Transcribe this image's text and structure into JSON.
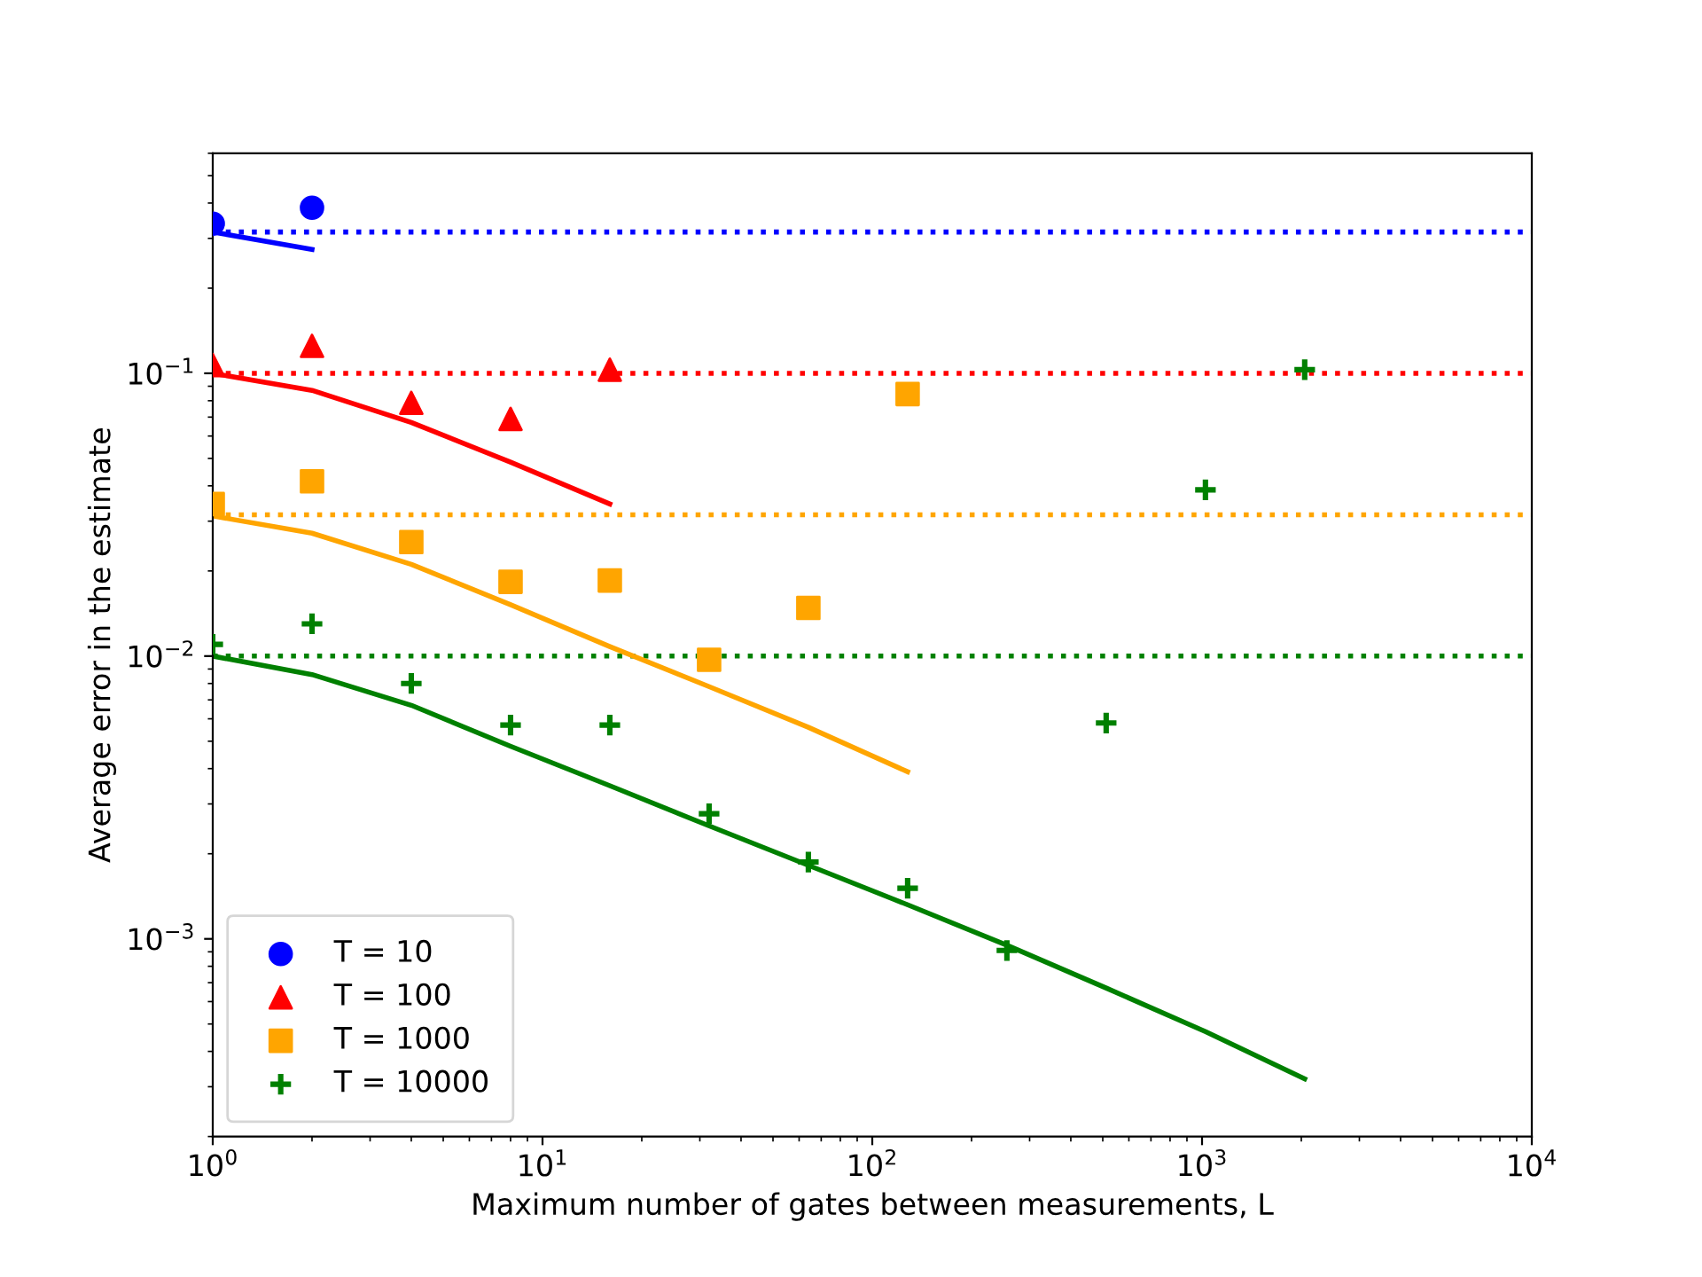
{
  "chart_data": {
    "type": "scatter",
    "xlabel": "Maximum number of gates between measurements, L",
    "ylabel": "Average error in the estimate",
    "log": "xy",
    "xlim": [
      1,
      10000
    ],
    "ylim": [
      0.0002,
      0.6
    ],
    "xticks": [
      {
        "value": 1,
        "label": "10$^{0}$"
      },
      {
        "value": 10,
        "label": "10$^{1}$"
      },
      {
        "value": 100,
        "label": "10$^{2}$"
      },
      {
        "value": 1000,
        "label": "10$^{3}$"
      },
      {
        "value": 10000,
        "label": "10$^{4}$"
      }
    ],
    "yticks": [
      {
        "value": 0.001,
        "label": "10$^{−3}$"
      },
      {
        "value": 0.01,
        "label": "10$^{−2}$"
      },
      {
        "value": 0.1,
        "label": "10$^{−1}$"
      }
    ],
    "legend": "bottom left",
    "grid": false,
    "series": [
      {
        "name": "T = 10",
        "marker": "circle",
        "color": "#0000ff",
        "x": [
          1,
          2
        ],
        "values": [
          0.338,
          0.385
        ]
      },
      {
        "name": "T = 100",
        "marker": "triangle",
        "color": "#ff0000",
        "x": [
          1,
          2,
          4,
          8,
          16
        ],
        "values": [
          0.107,
          0.125,
          0.0786,
          0.069,
          0.103
        ]
      },
      {
        "name": "T = 1000",
        "marker": "square",
        "color": "#ffa500",
        "x": [
          1,
          2,
          4,
          8,
          16,
          32,
          64,
          128
        ],
        "values": [
          0.0345,
          0.0415,
          0.0253,
          0.0183,
          0.0185,
          0.0097,
          0.0148,
          0.0844
        ]
      },
      {
        "name": "T = 10000",
        "marker": "cross",
        "color": "#008000",
        "x": [
          1,
          2,
          4,
          8,
          16,
          32,
          64,
          128,
          256,
          512,
          1024,
          2048
        ],
        "values": [
          0.011,
          0.013,
          0.008,
          0.0057,
          0.0057,
          0.00277,
          0.00187,
          0.00151,
          0.00091,
          0.0058,
          0.0387,
          0.103
        ]
      },
      {
        "type": "line",
        "line_style": "solid",
        "color": "#0000ff",
        "x": [
          1,
          2
        ],
        "values": [
          0.316,
          0.274
        ]
      },
      {
        "type": "line",
        "line_style": "solid",
        "color": "#ff0000",
        "x": [
          1,
          2,
          4,
          8,
          16
        ],
        "values": [
          0.1,
          0.087,
          0.067,
          0.0485,
          0.0345
        ]
      },
      {
        "type": "line",
        "line_style": "solid",
        "color": "#ffa500",
        "x": [
          1,
          2,
          4,
          8,
          16,
          32,
          64,
          128
        ],
        "values": [
          0.0313,
          0.0272,
          0.0211,
          0.0152,
          0.0108,
          0.0078,
          0.0056,
          0.0039
        ]
      },
      {
        "type": "line",
        "line_style": "solid",
        "color": "#008000",
        "x": [
          1,
          2,
          4,
          8,
          16,
          32,
          64,
          128,
          256,
          512,
          1024,
          2048
        ],
        "values": [
          0.01,
          0.0086,
          0.0067,
          0.0048,
          0.00348,
          0.00251,
          0.00182,
          0.00132,
          0.00095,
          0.00067,
          0.00047,
          0.00032
        ]
      }
    ],
    "ref_lines": [
      {
        "axis": "y",
        "value": 0.316,
        "color": "#0000ff",
        "line_style": "dotted"
      },
      {
        "axis": "y",
        "value": 0.1,
        "color": "#ff0000",
        "line_style": "dotted"
      },
      {
        "axis": "y",
        "value": 0.0316,
        "color": "#ffa500",
        "line_style": "dotted"
      },
      {
        "axis": "y",
        "value": 0.01,
        "color": "#008000",
        "line_style": "dotted"
      }
    ]
  }
}
